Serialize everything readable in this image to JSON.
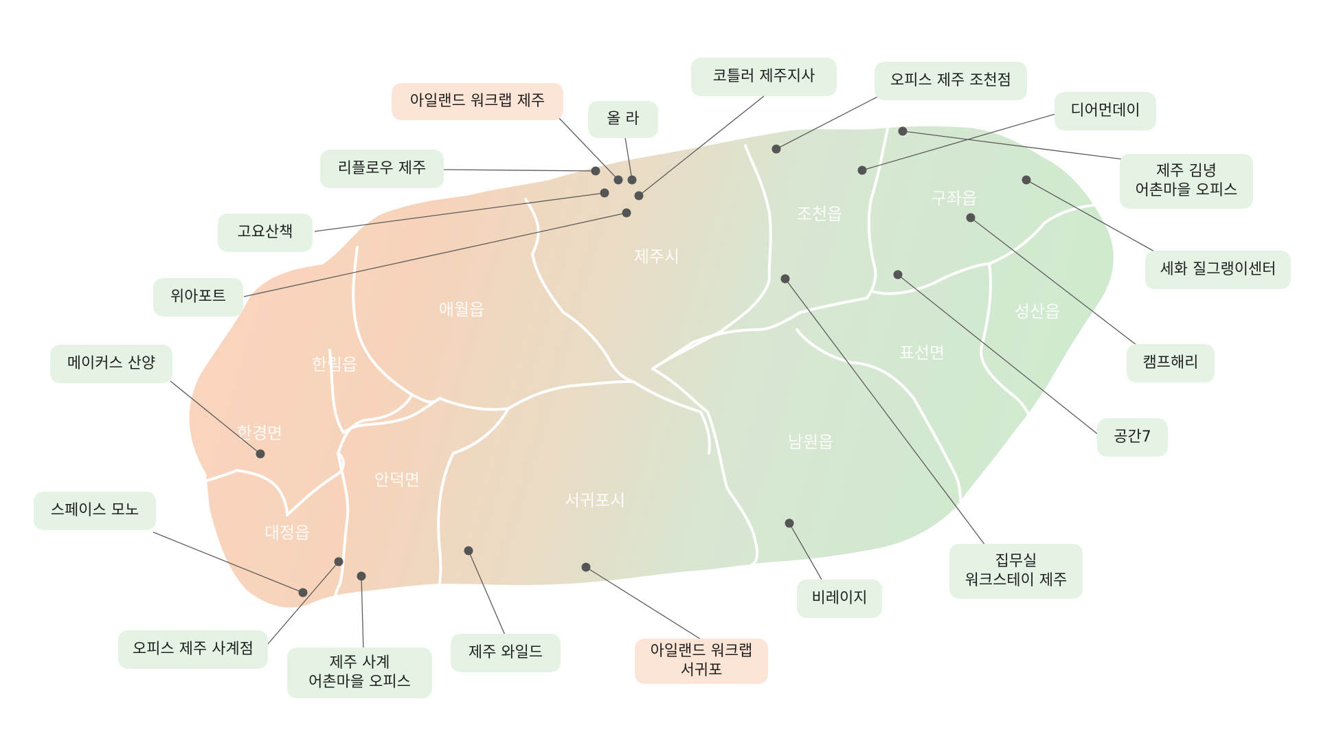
{
  "colors": {
    "west": "#f9d3bd",
    "center": "#e8dcc4",
    "east": "#cfe9cf",
    "boundary": "#ffffff",
    "pin": "#555555",
    "label_green": "#e4f3e4",
    "label_orange": "#fce5d6"
  },
  "regions": [
    "제주시",
    "애월읍",
    "한림읍",
    "한경면",
    "대정읍",
    "안덕면",
    "서귀포시",
    "남원읍",
    "표선면",
    "성산읍",
    "구좌읍",
    "조천읍"
  ],
  "places": [
    {
      "name": "아일랜드 워크랩 제주",
      "lines": [
        "아일랜드 워크랩 제주"
      ],
      "style": "orange"
    },
    {
      "name": "올 라",
      "lines": [
        "올 라"
      ],
      "style": "green"
    },
    {
      "name": "코틀러 제주지사",
      "lines": [
        "코틀러 제주지사"
      ],
      "style": "green"
    },
    {
      "name": "오피스 제주 조천점",
      "lines": [
        "오피스 제주 조천점"
      ],
      "style": "green"
    },
    {
      "name": "디어먼데이",
      "lines": [
        "디어먼데이"
      ],
      "style": "green"
    },
    {
      "name": "제주 김녕 어촌마을 오피스",
      "lines": [
        "제주 김녕",
        "어촌마을 오피스"
      ],
      "style": "green"
    },
    {
      "name": "세화 질그랭이센터",
      "lines": [
        "세화 질그랭이센터"
      ],
      "style": "green"
    },
    {
      "name": "캠프해리",
      "lines": [
        "캠프해리"
      ],
      "style": "green"
    },
    {
      "name": "공간7",
      "lines": [
        "공간7"
      ],
      "style": "green"
    },
    {
      "name": "집무실 워크스테이 제주",
      "lines": [
        "집무실",
        "워크스테이 제주"
      ],
      "style": "green"
    },
    {
      "name": "비레이지",
      "lines": [
        "비레이지"
      ],
      "style": "green"
    },
    {
      "name": "아일랜드 워크랩 서귀포",
      "lines": [
        "아일랜드 워크랩",
        "서귀포"
      ],
      "style": "orange"
    },
    {
      "name": "제주 와일드",
      "lines": [
        "제주 와일드"
      ],
      "style": "green"
    },
    {
      "name": "제주 사계 어촌마을 오피스",
      "lines": [
        "제주 사계",
        "어촌마을 오피스"
      ],
      "style": "green"
    },
    {
      "name": "오피스 제주 사계점",
      "lines": [
        "오피스 제주 사계점"
      ],
      "style": "green"
    },
    {
      "name": "스페이스 모노",
      "lines": [
        "스페이스 모노"
      ],
      "style": "green"
    },
    {
      "name": "메이커스 산양",
      "lines": [
        "메이커스 산양"
      ],
      "style": "green"
    },
    {
      "name": "위아포트",
      "lines": [
        "위아포트"
      ],
      "style": "green"
    },
    {
      "name": "고요산책",
      "lines": [
        "고요산책"
      ],
      "style": "green"
    },
    {
      "name": "리플로우 제주",
      "lines": [
        "리플로우 제주"
      ],
      "style": "green"
    }
  ]
}
